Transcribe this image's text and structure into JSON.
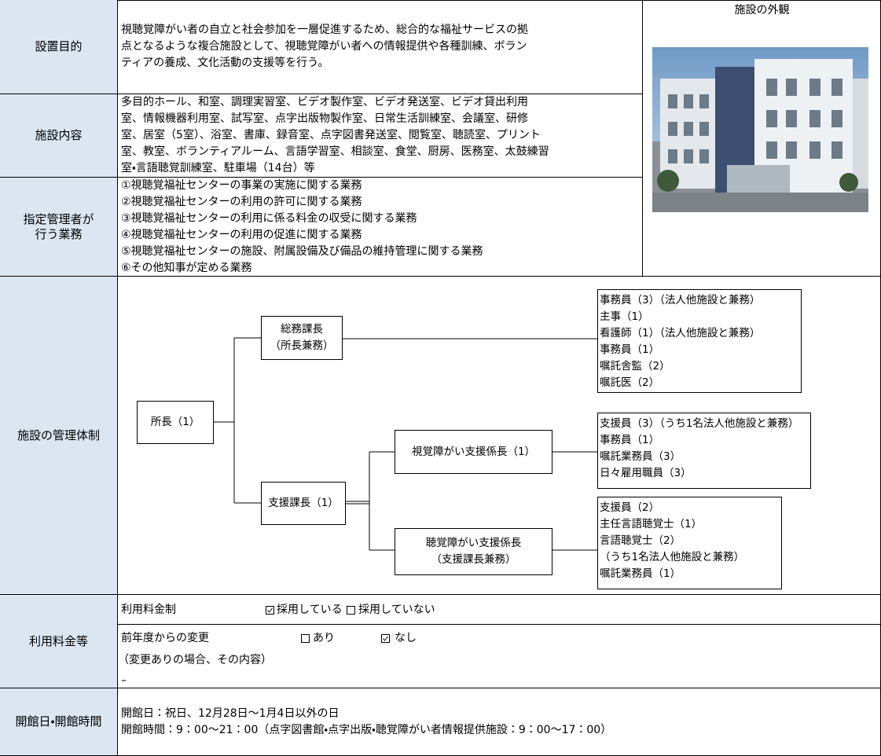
{
  "purpose": {
    "label": "設置目的",
    "lines": [
      "視聴覚障がい者の自立と社会参加を一層促進するため、総合的な福祉サービスの拠",
      "点となるような複合施設として、視聴覚障がい者への情報提供や各種訓練、ボラン",
      "ティアの養成、文化活動の支援等を行う。"
    ]
  },
  "facilities": {
    "label": "施設内容",
    "lines": [
      "多目的ホール、和室、調理実習室、ビデオ製作室、ビデオ発送室、ビデオ貸出利用",
      "室、情報機器利用室、試写室、点字出版物製作室、日常生活訓練室、会議室、研修",
      "室、居室（5室）、浴室、書庫、録音室、点字図書発送室、閲覧室、聴読室、プリント",
      "室、教室、ボランティアルーム、言語学習室、相談室、食堂、厨房、医務室、太鼓練習",
      "室・言語聴覚訓練室、駐車場（14台）等"
    ]
  },
  "duties": {
    "label": [
      "指定管理者が",
      "行う業務"
    ],
    "lines": [
      "①視聴覚福祉センターの事業の実施に関する業務",
      "②視聴覚福祉センターの利用の許可に関する業務",
      "③視聴覚福祉センターの利用に係る料金の収受に関する業務",
      "④視聴覚福祉センターの利用の促進に関する業務",
      "⑤視聴覚福祉センターの施設、附属設備及び備品の維持管理に関する業務",
      "⑥その他知事が定める業務"
    ]
  },
  "photo": {
    "title": "施設の外観"
  },
  "management": {
    "label": "施設の管理体制",
    "nodes": [
      {
        "lines": [
          "所長（1）"
        ]
      },
      {
        "lines": [
          "総務課長",
          "（所長兼務）"
        ]
      },
      {
        "lines": [
          "支援課長（1）"
        ]
      },
      {
        "lines": [
          "視覚障がい支援係長（1）"
        ]
      },
      {
        "lines": [
          "聴覚障がい支援係長",
          "（支援課長兼務）"
        ]
      }
    ],
    "staff": [
      {
        "lines": [
          "事務員（3）（法人他施設と兼務）",
          "主事（1）",
          "看護師（1）（法人他施設と兼務）",
          "事務員（1）",
          "嘱託舎監（2）",
          "嘱託医（2）"
        ]
      },
      {
        "lines": [
          "支援員（3）（うち1名法人他施設と兼務）",
          "事務員（1）",
          "嘱託業務員（3）",
          "日々雇用職員（3）"
        ]
      },
      {
        "lines": [
          "支援員（2）",
          "主任言語聴覚士（1）",
          "言語聴覚士（2）",
          "（うち1名法人他施設と兼務）",
          "嘱託業務員（1）"
        ]
      }
    ]
  },
  "fees": {
    "label": "利用料金等",
    "fee_system": {
      "label": "利用料金制",
      "options": [
        {
          "text": "採用している",
          "checked": true
        },
        {
          "text": "採用していない",
          "checked": false
        }
      ]
    },
    "change": {
      "label": "前年度からの変更",
      "options": [
        {
          "text": "あり",
          "checked": false
        },
        {
          "text": "なし",
          "checked": true
        }
      ],
      "note_label": "（変更ありの場合、その内容）",
      "note": "–"
    }
  },
  "hours": {
    "label": "開館日・開館時間",
    "lines": [
      "開館日：祝日、12月28日～1月4日以外の日",
      "開館時間：9：00～21：00（点字図書館・点字出版・聴覚障がい者情報提供施設：9：00～17：00）"
    ]
  }
}
